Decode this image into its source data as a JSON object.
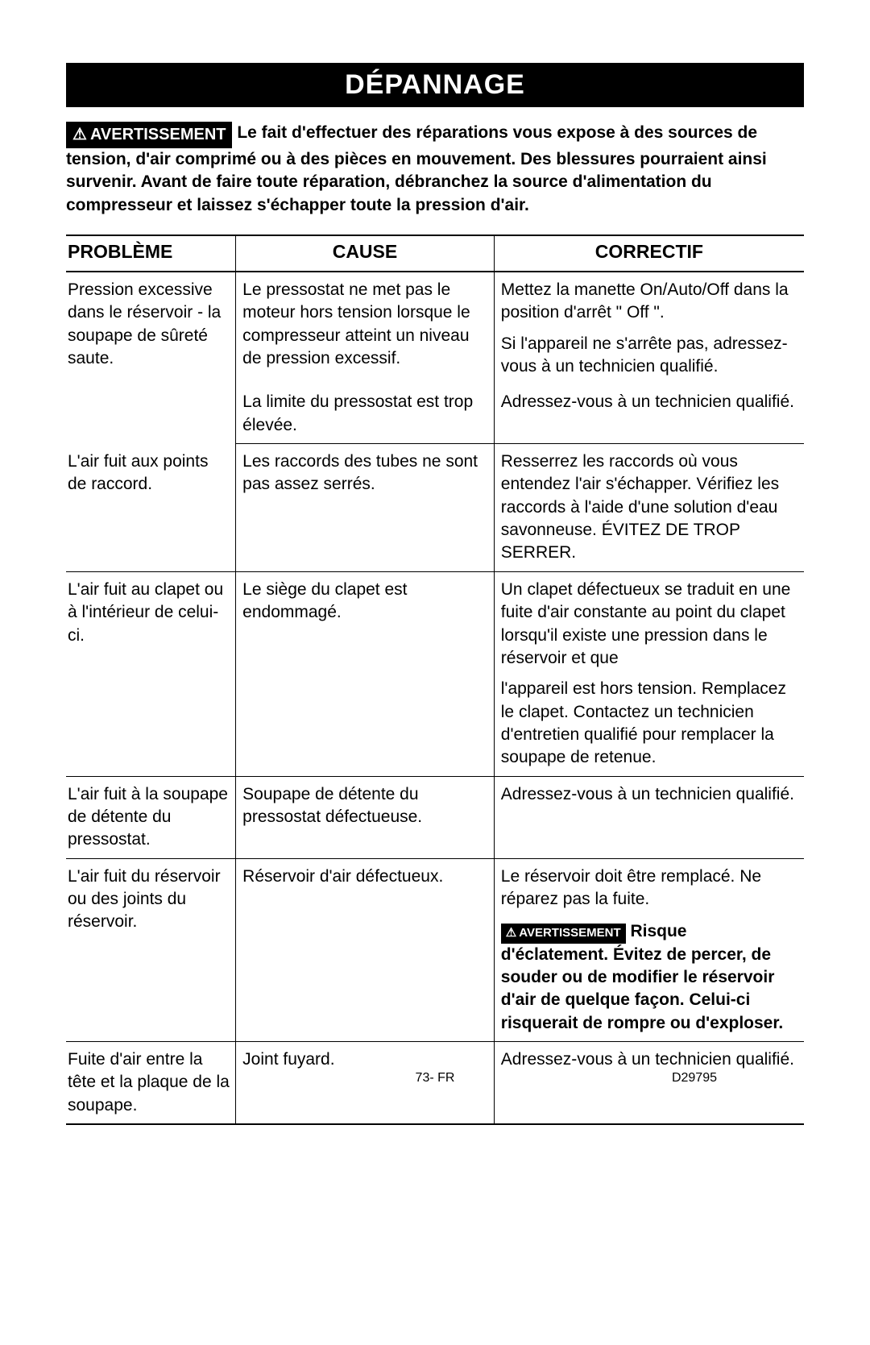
{
  "title": "DÉPANNAGE",
  "warning_label": "AVERTISSEMENT",
  "warning_text": "Le fait d'effectuer des réparations vous expose à des sources de tension, d'air comprimé ou à des pièces  en mouvement. Des blessures pourraient ainsi survenir.  Avant de faire toute réparation, débranchez la source d'alimentation du compresseur et laissez s'échapper toute la pression d'air.",
  "headers": {
    "problem": "PROBLÈME",
    "cause": "CAUSE",
    "correctif": "CORRECTIF"
  },
  "rows": {
    "r1": {
      "problem": "Pression excessive dans le réservoir - la soupape de sûreté saute.",
      "cause": "Le pressostat ne met pas le moteur hors tension lorsque le compresseur atteint un niveau de pression excessif.",
      "corr_a": "Mettez la manette On/Auto/Off dans la position d'arrêt \" Off \".",
      "corr_b": "Si l'appareil ne s'arrête pas, adressez-vous à un technicien qualifié."
    },
    "r1b": {
      "cause": "La limite du pressostat est trop élevée.",
      "corr": "Adressez-vous à un technicien qualifié."
    },
    "r2": {
      "problem": "L'air fuit aux points de raccord.",
      "cause": "Les raccords des tubes ne sont pas assez serrés.",
      "corr": "Resserrez les raccords où vous entendez l'air s'échapper.  Vérifiez les raccords à l'aide d'une solution d'eau savonneuse.  ÉVITEZ DE TROP SERRER."
    },
    "r3": {
      "problem": "L'air fuit au clapet ou à l'intérieur de celui-ci.",
      "cause": "Le siège du clapet est endommagé.",
      "corr_a": "Un clapet défectueux se traduit en une fuite d'air constante au point du clapet lorsqu'il existe une pression dans le réservoir et que",
      "corr_b": "l'appareil est hors tension.  Remplacez le clapet.  Contactez un technicien d'entretien qualifié pour remplacer la soupape de retenue."
    },
    "r4": {
      "problem": "L'air fuit à la soupape de détente du pressostat.",
      "cause": "Soupape de détente du pressostat défectueuse.",
      "corr": "Adressez-vous à un technicien qualifié."
    },
    "r5": {
      "problem": "L'air fuit du réservoir ou des joints du réservoir.",
      "cause": "Réservoir d'air défectueux.",
      "corr_a": "Le réservoir doit être remplacé.  Ne réparez pas la fuite.",
      "warn_label": "AVERTISSEMENT",
      "warn_text": "Risque d'éclatement. Évitez de percer, de souder ou de modifier le réservoir d'air de quelque façon.  Celui-ci risquerait de rompre ou d'exploser."
    },
    "r6": {
      "problem": "Fuite d'air entre la tête et la plaque de la soupape.",
      "cause": "Joint fuyard.",
      "corr": "Adressez-vous à un technicien qualifié."
    }
  },
  "footer": {
    "page": "73- FR",
    "doc": "D29795"
  }
}
